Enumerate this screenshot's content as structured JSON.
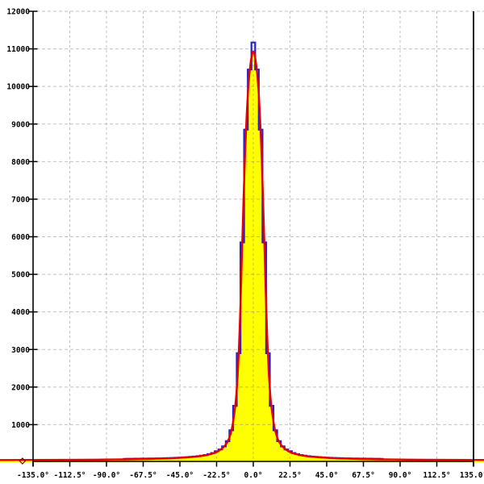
{
  "chart_data": {
    "type": "line",
    "title": "",
    "xlabel": "",
    "ylabel": "",
    "grid": true,
    "legend": "none",
    "xlim": [
      -135,
      135
    ],
    "ylim": [
      0,
      12000
    ],
    "x_tick_values": [
      -135,
      -112.5,
      -90,
      -67.5,
      -45,
      -22.5,
      0,
      22.5,
      45,
      67.5,
      90,
      112.5,
      135
    ],
    "x_tick_labels": [
      "-135.0°",
      "-112.5°",
      "-90.0°",
      "-67.5°",
      "-45.0°",
      "-22.5°",
      "0.0°",
      "22.5°",
      "45.0°",
      "67.5°",
      "90.0°",
      "112.5°",
      "135.0°"
    ],
    "y_tick_values": [
      1000,
      2000,
      3000,
      4000,
      5000,
      6000,
      7000,
      8000,
      9000,
      10000,
      11000,
      12000
    ],
    "y_tick_labels": [
      "1000",
      "2000",
      "3000",
      "4000",
      "5000",
      "6000",
      "7000",
      "8000",
      "9000",
      "10000",
      "11000",
      "12000"
    ],
    "colors": {
      "curve": "#e80000",
      "fill": "#ffff00",
      "histogram": "#2222cc",
      "grid": "#c9c9c9",
      "axis": "#000000",
      "marker": "#7a0000"
    },
    "series": [
      {
        "name": "histogram-steps",
        "style": "steps",
        "color": "#2222cc",
        "bin_width": 2.25,
        "points": [
          [
            -78.75,
            91
          ],
          [
            -76.5,
            92
          ],
          [
            -74.25,
            93
          ],
          [
            -72,
            94
          ],
          [
            -69.75,
            95
          ],
          [
            -67.5,
            96
          ],
          [
            -65.25,
            97
          ],
          [
            -63,
            98
          ],
          [
            -60.75,
            100
          ],
          [
            -58.5,
            102
          ],
          [
            -56.25,
            104
          ],
          [
            -54,
            107
          ],
          [
            -51.75,
            110
          ],
          [
            -49.5,
            113
          ],
          [
            -47.25,
            117
          ],
          [
            -45,
            122
          ],
          [
            -42.75,
            128
          ],
          [
            -40.5,
            135
          ],
          [
            -38.25,
            142
          ],
          [
            -36,
            150
          ],
          [
            -33.75,
            160
          ],
          [
            -31.5,
            174
          ],
          [
            -29.25,
            192
          ],
          [
            -27,
            215
          ],
          [
            -24.75,
            245
          ],
          [
            -22.5,
            295
          ],
          [
            -20.25,
            340
          ],
          [
            -18,
            420
          ],
          [
            -15.75,
            560
          ],
          [
            -13.5,
            850
          ],
          [
            -11.25,
            1500
          ],
          [
            -9,
            2900
          ],
          [
            -6.75,
            5850
          ],
          [
            -4.5,
            8850
          ],
          [
            -2.25,
            10450
          ],
          [
            0,
            11170
          ],
          [
            2.25,
            10450
          ],
          [
            4.5,
            8850
          ],
          [
            6.75,
            5850
          ],
          [
            9,
            2900
          ],
          [
            11.25,
            1500
          ],
          [
            13.5,
            850
          ],
          [
            15.75,
            560
          ],
          [
            18,
            420
          ],
          [
            20.25,
            340
          ],
          [
            22.5,
            295
          ],
          [
            24.75,
            245
          ],
          [
            27,
            215
          ],
          [
            29.25,
            192
          ],
          [
            31.5,
            174
          ],
          [
            33.75,
            160
          ],
          [
            36,
            150
          ],
          [
            38.25,
            142
          ],
          [
            40.5,
            135
          ],
          [
            42.75,
            128
          ],
          [
            45,
            122
          ],
          [
            47.25,
            117
          ],
          [
            49.5,
            113
          ],
          [
            51.75,
            110
          ],
          [
            54,
            107
          ],
          [
            56.25,
            104
          ],
          [
            58.5,
            102
          ],
          [
            60.75,
            100
          ],
          [
            63,
            98
          ],
          [
            65.25,
            97
          ],
          [
            67.5,
            96
          ],
          [
            69.75,
            95
          ],
          [
            72,
            94
          ],
          [
            74.25,
            93
          ],
          [
            76.5,
            92
          ],
          [
            78.75,
            91
          ]
        ]
      },
      {
        "name": "fit-curve",
        "style": "line-filled",
        "color": "#e80000",
        "fill": "#ffff00",
        "points": [
          [
            -160,
            58
          ],
          [
            -135,
            60
          ],
          [
            -120,
            62
          ],
          [
            -105,
            65
          ],
          [
            -95,
            68
          ],
          [
            -85,
            72
          ],
          [
            -78.75,
            76
          ],
          [
            -72,
            80
          ],
          [
            -65,
            86
          ],
          [
            -58,
            94
          ],
          [
            -52,
            103
          ],
          [
            -46,
            115
          ],
          [
            -41,
            128
          ],
          [
            -36,
            145
          ],
          [
            -32,
            165
          ],
          [
            -28,
            195
          ],
          [
            -25,
            230
          ],
          [
            -22.5,
            270
          ],
          [
            -20.5,
            320
          ],
          [
            -18.5,
            390
          ],
          [
            -17,
            460
          ],
          [
            -15.8,
            540
          ],
          [
            -14.8,
            640
          ],
          [
            -13.9,
            760
          ],
          [
            -13.1,
            900
          ],
          [
            -12.4,
            1060
          ],
          [
            -11.8,
            1240
          ],
          [
            -11.2,
            1450
          ],
          [
            -10.6,
            1700
          ],
          [
            -10.1,
            1980
          ],
          [
            -9.6,
            2300
          ],
          [
            -9.2,
            2650
          ],
          [
            -8.8,
            3050
          ],
          [
            -8.4,
            3500
          ],
          [
            -8,
            4000
          ],
          [
            -7.6,
            4550
          ],
          [
            -7.2,
            5150
          ],
          [
            -6.8,
            5780
          ],
          [
            -6.4,
            6400
          ],
          [
            -6,
            7000
          ],
          [
            -5.5,
            7650
          ],
          [
            -5,
            8250
          ],
          [
            -4.5,
            8800
          ],
          [
            -4,
            9280
          ],
          [
            -3.5,
            9680
          ],
          [
            -3,
            10000
          ],
          [
            -2.5,
            10280
          ],
          [
            -2,
            10500
          ],
          [
            -1.5,
            10680
          ],
          [
            -1,
            10810
          ],
          [
            -0.5,
            10900
          ],
          [
            0,
            10930
          ],
          [
            0.5,
            10900
          ],
          [
            1,
            10810
          ],
          [
            1.5,
            10680
          ],
          [
            2,
            10500
          ],
          [
            2.5,
            10280
          ],
          [
            3,
            10000
          ],
          [
            3.5,
            9680
          ],
          [
            4,
            9280
          ],
          [
            4.5,
            8800
          ],
          [
            5,
            8250
          ],
          [
            5.5,
            7650
          ],
          [
            6,
            7000
          ],
          [
            6.4,
            6400
          ],
          [
            6.8,
            5780
          ],
          [
            7.2,
            5150
          ],
          [
            7.6,
            4550
          ],
          [
            8,
            4000
          ],
          [
            8.4,
            3500
          ],
          [
            8.8,
            3050
          ],
          [
            9.2,
            2650
          ],
          [
            9.6,
            2300
          ],
          [
            10.1,
            1980
          ],
          [
            10.6,
            1700
          ],
          [
            11.2,
            1450
          ],
          [
            11.8,
            1240
          ],
          [
            12.4,
            1060
          ],
          [
            13.1,
            900
          ],
          [
            13.9,
            760
          ],
          [
            14.8,
            640
          ],
          [
            15.8,
            540
          ],
          [
            17,
            460
          ],
          [
            18.5,
            390
          ],
          [
            20.5,
            320
          ],
          [
            22.5,
            270
          ],
          [
            25,
            230
          ],
          [
            28,
            195
          ],
          [
            32,
            165
          ],
          [
            36,
            145
          ],
          [
            41,
            128
          ],
          [
            46,
            115
          ],
          [
            52,
            103
          ],
          [
            58,
            94
          ],
          [
            65,
            86
          ],
          [
            72,
            80
          ],
          [
            78.75,
            76
          ],
          [
            85,
            72
          ],
          [
            95,
            68
          ],
          [
            105,
            65
          ],
          [
            120,
            62
          ],
          [
            135,
            60
          ],
          [
            160,
            58
          ]
        ]
      }
    ],
    "outlier_marker": {
      "shape": "diamond-outline",
      "angle": -141.5,
      "value": 0,
      "color": "#7a0000"
    }
  }
}
